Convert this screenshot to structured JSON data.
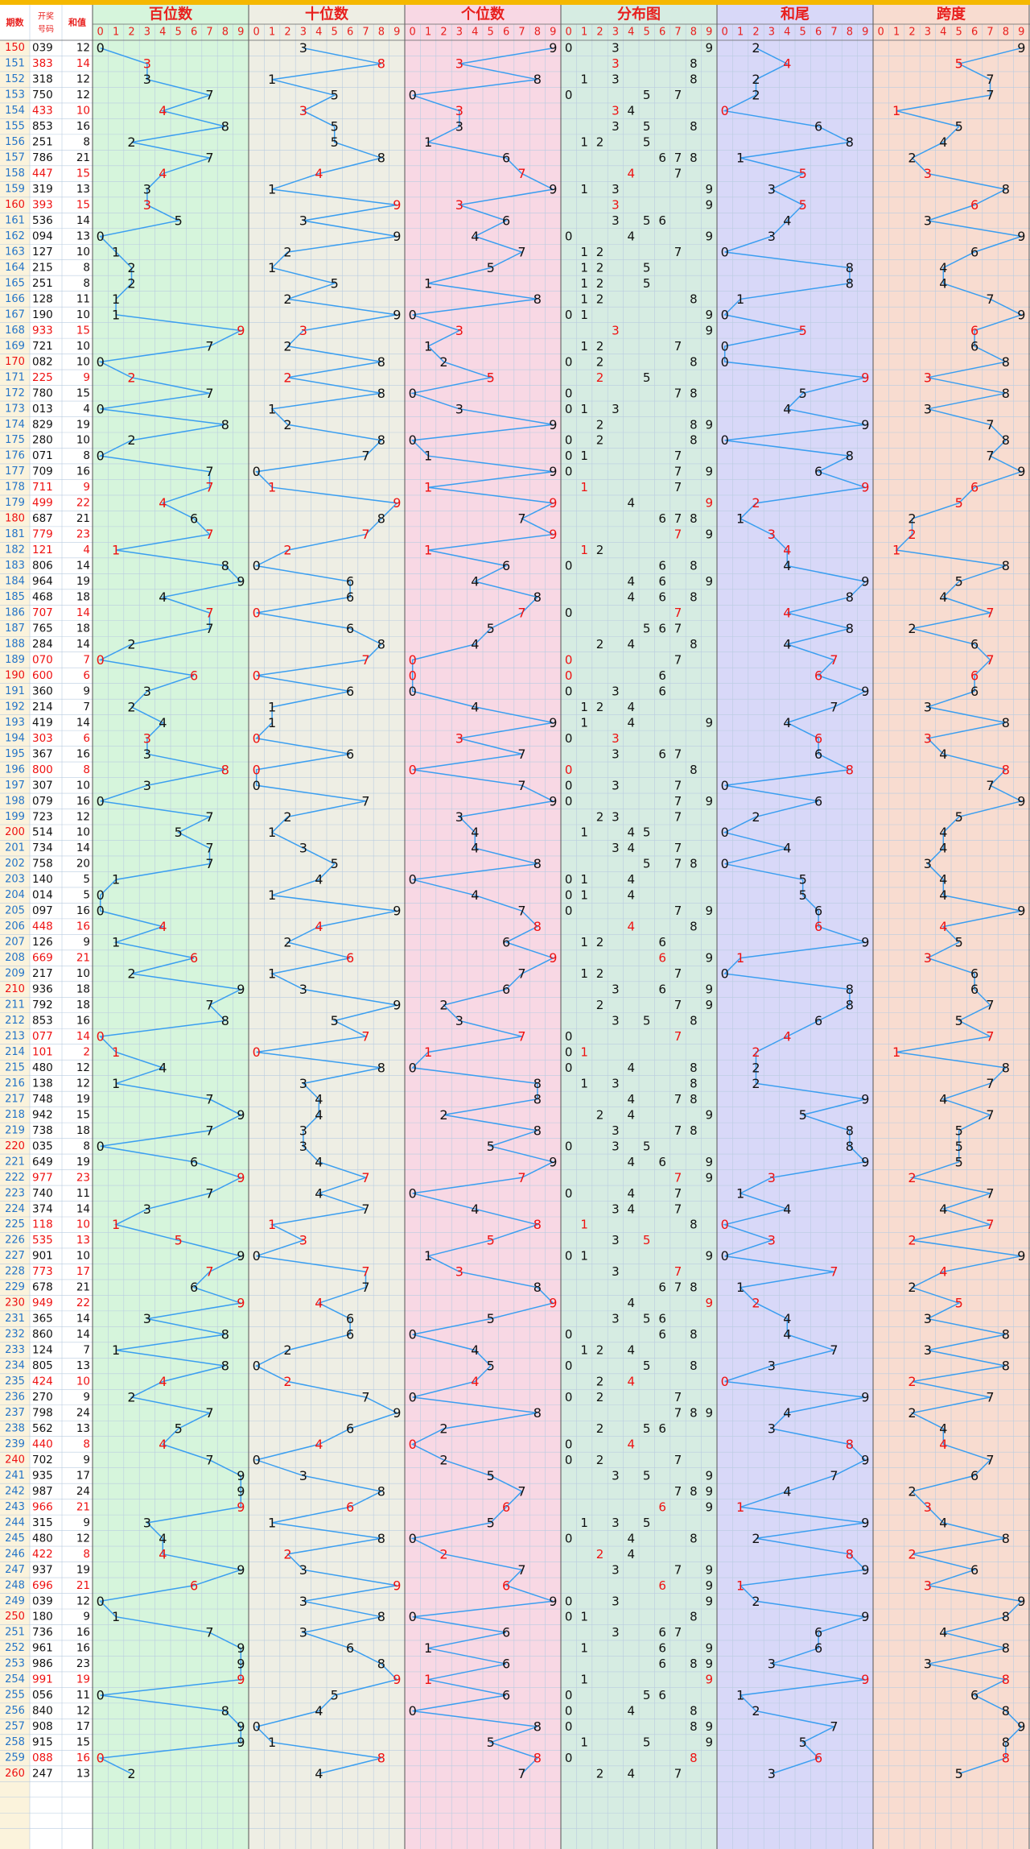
{
  "header": {
    "col_period": "期数",
    "col_number_line1": "开奖",
    "col_number_line2": "号码",
    "col_sum": "和值"
  },
  "panels": [
    {
      "title": "百位数",
      "bg": "#d6f5dc"
    },
    {
      "title": "十位数",
      "bg": "#eeeee4"
    },
    {
      "title": "个位数",
      "bg": "#f8d8e4"
    },
    {
      "title": "分布图",
      "bg": "#d6ece2"
    },
    {
      "title": "和尾",
      "bg": "#d8d8f8"
    },
    {
      "title": "跨度",
      "bg": "#f8dcd0"
    }
  ],
  "digits": [
    "0",
    "1",
    "2",
    "3",
    "4",
    "5",
    "6",
    "7",
    "8",
    "9"
  ],
  "colors": {
    "accent_bar": "#f5b800",
    "title_red": "#e8201e",
    "line_blue": "#3a9ef0",
    "hot_red": "#ee1111",
    "period_blue": "#2474c8"
  },
  "chart_data": {
    "type": "table",
    "periods": [
      "150",
      "151",
      "152",
      "153",
      "154",
      "155",
      "156",
      "157",
      "158",
      "159",
      "160",
      "161",
      "162",
      "163",
      "164",
      "165",
      "166",
      "167",
      "168",
      "169",
      "170",
      "171",
      "172",
      "173",
      "174",
      "175",
      "176",
      "177",
      "178",
      "179",
      "180",
      "181",
      "182",
      "183",
      "184",
      "185",
      "186",
      "187",
      "188",
      "189",
      "190",
      "191",
      "192",
      "193",
      "194",
      "195",
      "196",
      "197",
      "198",
      "199",
      "200",
      "201",
      "202",
      "203",
      "204",
      "205",
      "206",
      "207",
      "208",
      "209",
      "210",
      "211",
      "212",
      "213",
      "214",
      "215",
      "216",
      "217",
      "218",
      "219",
      "220",
      "221",
      "222",
      "223",
      "224",
      "225",
      "226",
      "227",
      "228",
      "229",
      "230",
      "231",
      "232",
      "233",
      "234",
      "235",
      "236",
      "237",
      "238",
      "239",
      "240",
      "241",
      "242",
      "243",
      "244",
      "245",
      "246",
      "247",
      "248",
      "249",
      "250",
      "251",
      "252",
      "253",
      "254",
      "255",
      "256",
      "257",
      "258",
      "259",
      "260"
    ],
    "numbers": [
      "039",
      "383",
      "318",
      "750",
      "433",
      "853",
      "251",
      "786",
      "447",
      "319",
      "393",
      "536",
      "094",
      "127",
      "215",
      "251",
      "128",
      "190",
      "933",
      "721",
      "082",
      "225",
      "780",
      "013",
      "829",
      "280",
      "071",
      "709",
      "711",
      "499",
      "687",
      "779",
      "121",
      "806",
      "964",
      "468",
      "707",
      "765",
      "284",
      "070",
      "600",
      "360",
      "214",
      "419",
      "303",
      "367",
      "800",
      "307",
      "079",
      "723",
      "514",
      "734",
      "758",
      "140",
      "014",
      "097",
      "448",
      "126",
      "669",
      "217",
      "936",
      "792",
      "853",
      "077",
      "101",
      "480",
      "138",
      "748",
      "942",
      "738",
      "035",
      "649",
      "977",
      "740",
      "374",
      "118",
      "535",
      "901",
      "773",
      "678",
      "949",
      "365",
      "860",
      "124",
      "805",
      "424",
      "270",
      "798",
      "562",
      "440",
      "702",
      "935",
      "987",
      "966",
      "315",
      "480",
      "422",
      "937",
      "696",
      "039",
      "180",
      "736",
      "961",
      "986",
      "991",
      "056",
      "840",
      "908",
      "915",
      "088",
      "247"
    ],
    "sums": [
      12,
      14,
      12,
      12,
      10,
      16,
      8,
      21,
      15,
      13,
      15,
      14,
      13,
      10,
      8,
      8,
      11,
      10,
      15,
      10,
      10,
      9,
      15,
      4,
      19,
      10,
      8,
      16,
      9,
      22,
      21,
      23,
      4,
      14,
      19,
      18,
      14,
      18,
      14,
      7,
      6,
      9,
      7,
      14,
      6,
      16,
      8,
      10,
      16,
      12,
      10,
      14,
      20,
      5,
      5,
      16,
      16,
      9,
      21,
      10,
      18,
      18,
      16,
      14,
      2,
      12,
      12,
      19,
      15,
      18,
      8,
      19,
      23,
      11,
      14,
      10,
      13,
      10,
      17,
      21,
      22,
      14,
      14,
      7,
      13,
      10,
      9,
      24,
      13,
      8,
      9,
      17,
      24,
      21,
      9,
      12,
      8,
      19,
      21,
      12,
      9,
      16,
      16,
      23,
      19,
      11,
      12,
      17,
      15,
      16,
      13
    ]
  }
}
